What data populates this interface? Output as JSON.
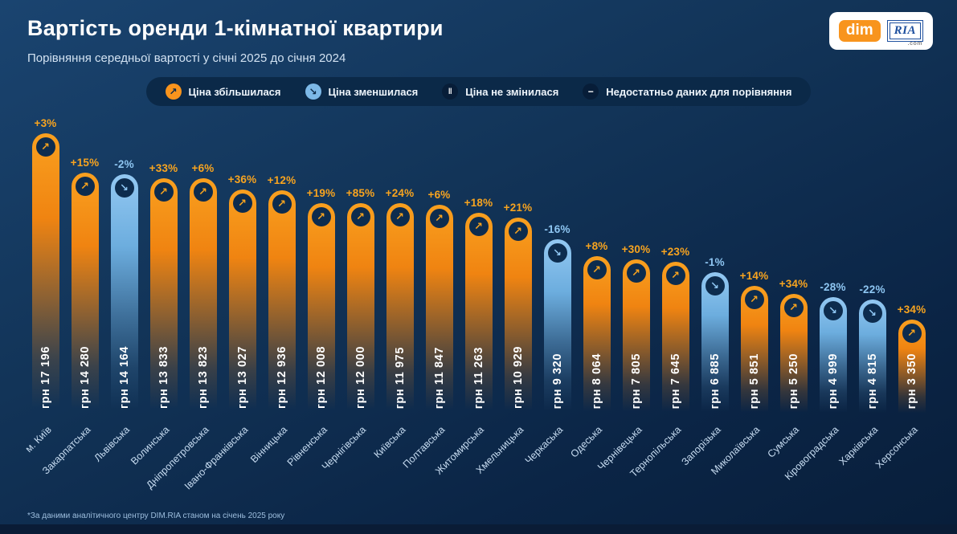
{
  "header": {
    "title": "Вартість оренди 1-кімнатної квартири",
    "subtitle": "Порівняння середньої вартості у січні 2025 до січня 2024"
  },
  "logo": {
    "dim": "dim",
    "ria": "RIA",
    "com": ".com"
  },
  "legend": {
    "items": [
      {
        "type": "up",
        "label": "Ціна збільшилася"
      },
      {
        "type": "down",
        "label": "Ціна зменшилася"
      },
      {
        "type": "same",
        "label": "Ціна не змінилася"
      },
      {
        "type": "nodata",
        "label": "Недостатньо даних для порівняння"
      }
    ]
  },
  "footer": {
    "note": "*За даними аналітичного центру DIM.RIA станом на січень 2025 року"
  },
  "chart_data": {
    "type": "bar",
    "title": "Вартість оренди 1-кімнатної квартири",
    "subtitle": "Порівняння середньої вартості у січні 2025 до січня 2024",
    "unit": "грн",
    "value_range": [
      3350,
      17196
    ],
    "colors": {
      "up": "#f8941d",
      "down": "#7db9e8",
      "background": "#0e2d50"
    },
    "bars": [
      {
        "region": "м. Київ",
        "value": 17196,
        "value_label": "грн 17 196",
        "change": "+3%",
        "direction": "up"
      },
      {
        "region": "Закарпатська",
        "value": 14280,
        "value_label": "грн 14 280",
        "change": "+15%",
        "direction": "up"
      },
      {
        "region": "Львівська",
        "value": 14164,
        "value_label": "грн 14 164",
        "change": "-2%",
        "direction": "down"
      },
      {
        "region": "Волинська",
        "value": 13833,
        "value_label": "грн 13 833",
        "change": "+33%",
        "direction": "up"
      },
      {
        "region": "Дніпропетровська",
        "value": 13823,
        "value_label": "грн 13 823",
        "change": "+6%",
        "direction": "up"
      },
      {
        "region": "Івано-Франківська",
        "value": 13027,
        "value_label": "грн 13 027",
        "change": "+36%",
        "direction": "up"
      },
      {
        "region": "Вінницька",
        "value": 12936,
        "value_label": "грн 12 936",
        "change": "+12%",
        "direction": "up"
      },
      {
        "region": "Рівненська",
        "value": 12008,
        "value_label": "грн 12 008",
        "change": "+19%",
        "direction": "up"
      },
      {
        "region": "Чернігівська",
        "value": 12000,
        "value_label": "грн 12 000",
        "change": "+85%",
        "direction": "up"
      },
      {
        "region": "Київська",
        "value": 11975,
        "value_label": "грн 11 975",
        "change": "+24%",
        "direction": "up"
      },
      {
        "region": "Полтавська",
        "value": 11847,
        "value_label": "грн 11 847",
        "change": "+6%",
        "direction": "up"
      },
      {
        "region": "Житомирська",
        "value": 11263,
        "value_label": "грн 11 263",
        "change": "+18%",
        "direction": "up"
      },
      {
        "region": "Хмельницька",
        "value": 10929,
        "value_label": "грн 10 929",
        "change": "+21%",
        "direction": "up"
      },
      {
        "region": "Черкаська",
        "value": 9320,
        "value_label": "грн 9 320",
        "change": "-16%",
        "direction": "down"
      },
      {
        "region": "Одеська",
        "value": 8064,
        "value_label": "грн 8 064",
        "change": "+8%",
        "direction": "up"
      },
      {
        "region": "Чернівецька",
        "value": 7805,
        "value_label": "грн 7 805",
        "change": "+30%",
        "direction": "up"
      },
      {
        "region": "Тернопільська",
        "value": 7645,
        "value_label": "грн 7 645",
        "change": "+23%",
        "direction": "up"
      },
      {
        "region": "Запорізька",
        "value": 6885,
        "value_label": "грн 6 885",
        "change": "-1%",
        "direction": "down"
      },
      {
        "region": "Миколаївська",
        "value": 5851,
        "value_label": "грн 5 851",
        "change": "+14%",
        "direction": "up"
      },
      {
        "region": "Сумська",
        "value": 5250,
        "value_label": "грн 5 250",
        "change": "+34%",
        "direction": "up"
      },
      {
        "region": "Кіровоградська",
        "value": 4999,
        "value_label": "грн 4 999",
        "change": "-28%",
        "direction": "down"
      },
      {
        "region": "Харківська",
        "value": 4815,
        "value_label": "грн 4 815",
        "change": "-22%",
        "direction": "down"
      },
      {
        "region": "Херсонська",
        "value": 3350,
        "value_label": "грн 3 350",
        "change": "+34%",
        "direction": "up"
      }
    ]
  }
}
